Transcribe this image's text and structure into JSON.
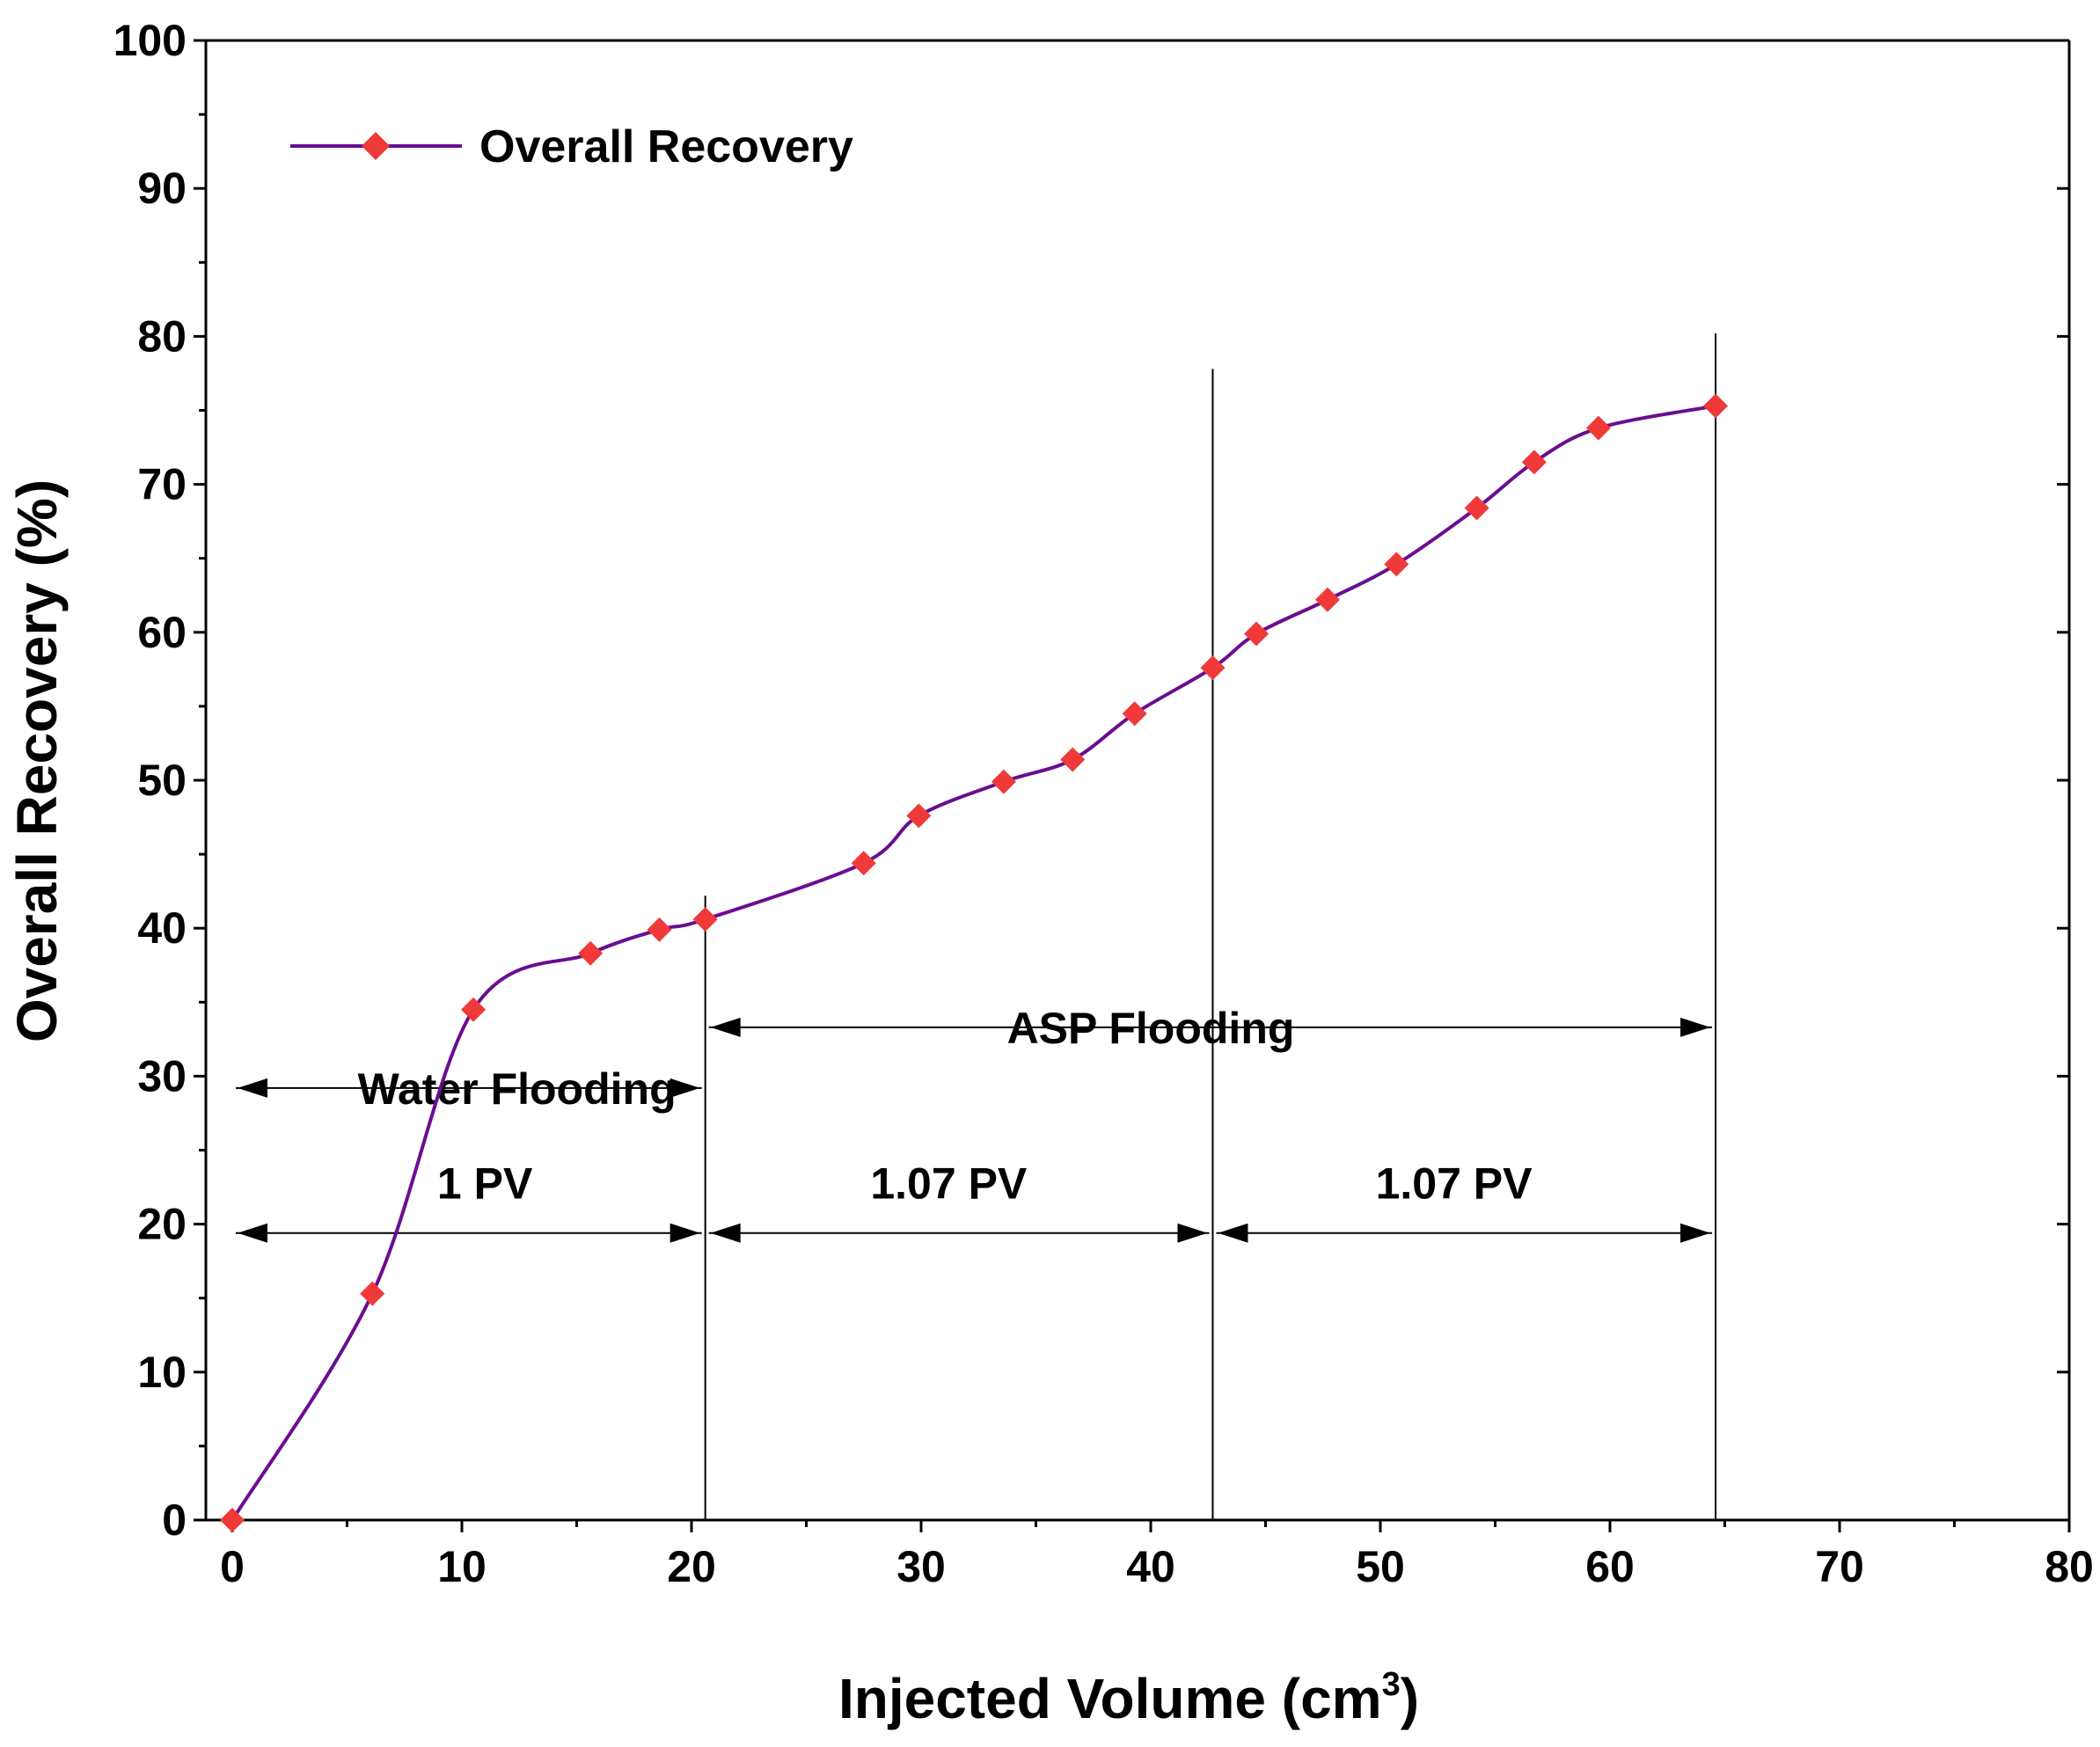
{
  "chart_data": {
    "type": "line",
    "title": "",
    "xlabel": "Injected Volume (cm",
    "xlabel_superscript": "3",
    "xlabel_suffix": ")",
    "ylabel": "Overall Recovery (%)",
    "xlim": [
      0,
      80
    ],
    "ylim": [
      0,
      100
    ],
    "xticks": [
      0,
      10,
      20,
      30,
      40,
      50,
      60,
      70,
      80
    ],
    "yticks": [
      0,
      10,
      20,
      30,
      40,
      50,
      60,
      70,
      80,
      90,
      100
    ],
    "grid": false,
    "legend_position": "top-left",
    "series": [
      {
        "name": "Overall Recovery",
        "line_color": "#6a0d91",
        "marker_color": "#f03a3a",
        "marker": "diamond",
        "points": [
          {
            "x": 0,
            "y": 0
          },
          {
            "x": 6.1,
            "y": 15.3
          },
          {
            "x": 10.5,
            "y": 34.5
          },
          {
            "x": 15.6,
            "y": 38.3
          },
          {
            "x": 18.6,
            "y": 39.9
          },
          {
            "x": 20.6,
            "y": 40.6
          },
          {
            "x": 27.5,
            "y": 44.4
          },
          {
            "x": 29.9,
            "y": 47.6
          },
          {
            "x": 33.6,
            "y": 49.9
          },
          {
            "x": 36.6,
            "y": 51.4
          },
          {
            "x": 39.3,
            "y": 54.5
          },
          {
            "x": 42.7,
            "y": 57.6
          },
          {
            "x": 44.6,
            "y": 59.9
          },
          {
            "x": 47.7,
            "y": 62.2
          },
          {
            "x": 50.7,
            "y": 64.6
          },
          {
            "x": 54.2,
            "y": 68.4
          },
          {
            "x": 56.7,
            "y": 71.5
          },
          {
            "x": 59.5,
            "y": 73.8
          },
          {
            "x": 64.6,
            "y": 75.3
          }
        ]
      }
    ],
    "vertical_lines": [
      {
        "x": 20.6,
        "y_top": 42.2
      },
      {
        "x": 42.7,
        "y_top": 77.8
      },
      {
        "x": 64.6,
        "y_top": 80.2
      }
    ],
    "annotations": [
      {
        "label": "Water Flooding",
        "x1": 0,
        "x2": 20.6,
        "y": 29.2,
        "label_x": 12.4,
        "label_y": 29.2
      },
      {
        "label": "ASP Flooding",
        "x1": 20.6,
        "x2": 64.6,
        "y": 33.3,
        "label_x": 40.0,
        "label_y": 33.3
      },
      {
        "label": "1 PV",
        "x1": 0,
        "x2": 20.6,
        "y": 19.4,
        "label_x": 11.0,
        "label_y": 22.8
      },
      {
        "label": "1.07 PV",
        "x1": 20.6,
        "x2": 42.7,
        "y": 19.4,
        "label_x": 31.2,
        "label_y": 22.8
      },
      {
        "label": "1.07 PV",
        "x1": 42.7,
        "x2": 64.6,
        "y": 19.4,
        "label_x": 53.2,
        "label_y": 22.8
      }
    ]
  }
}
